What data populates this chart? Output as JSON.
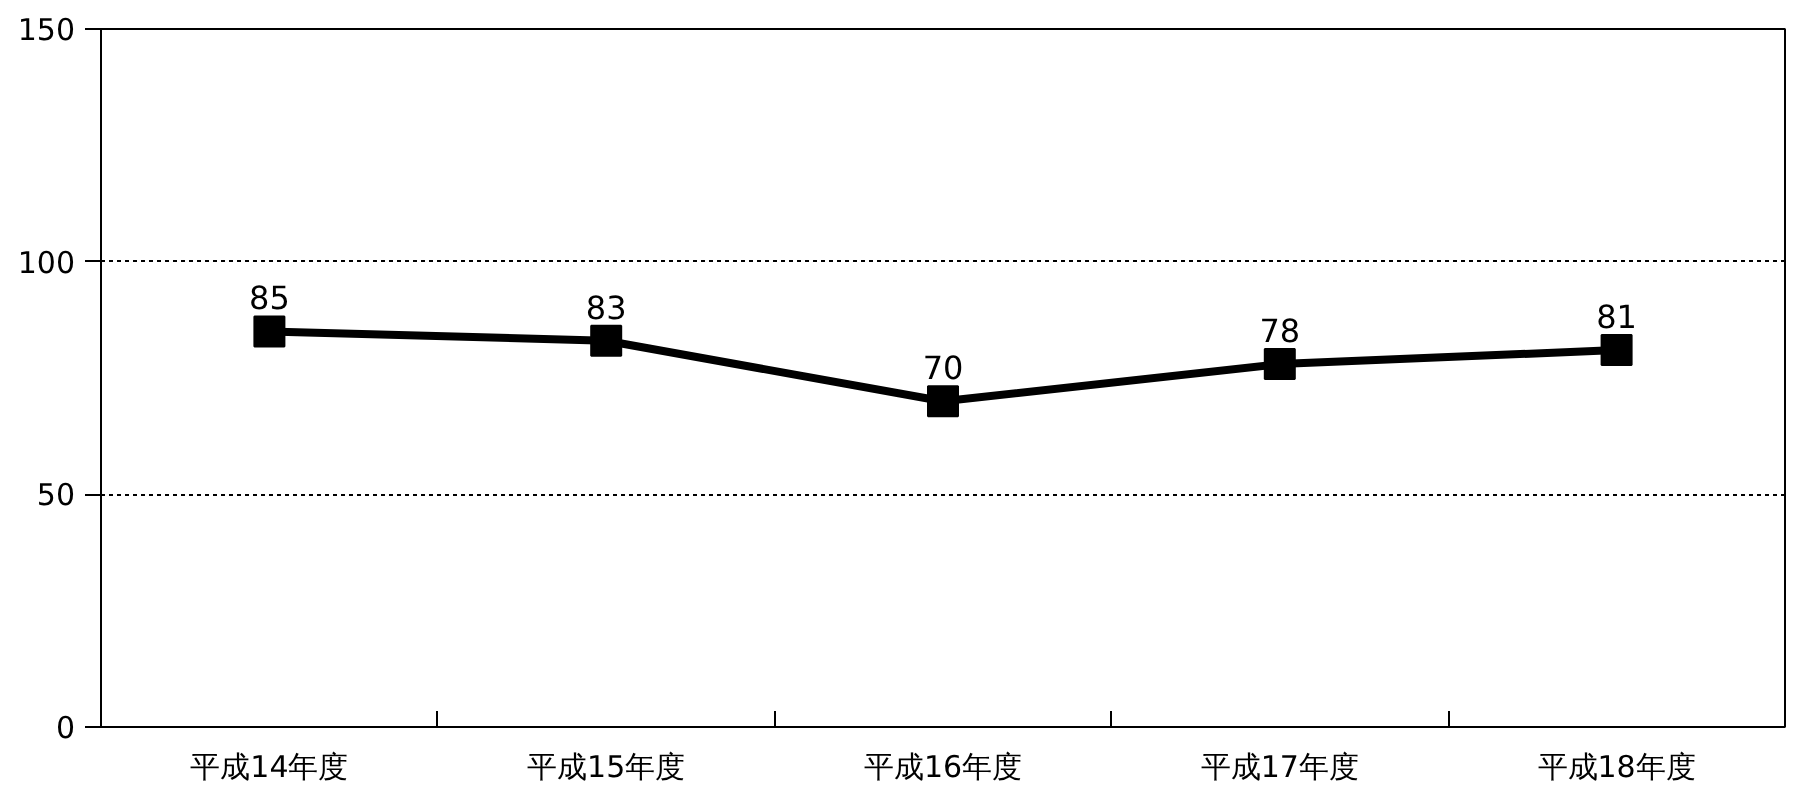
{
  "chart_data": {
    "type": "line",
    "categories": [
      "平成14年度",
      "平成15年度",
      "平成16年度",
      "平成17年度",
      "平成18年度"
    ],
    "series": [
      {
        "color": "#000000",
        "values": [
          85,
          83,
          70,
          78,
          81
        ]
      }
    ],
    "ylim": [
      0,
      150
    ],
    "yticks": [
      0,
      50,
      100,
      150
    ],
    "grid": "y",
    "data_labels": true,
    "marker": "square",
    "line_style": "solid"
  }
}
